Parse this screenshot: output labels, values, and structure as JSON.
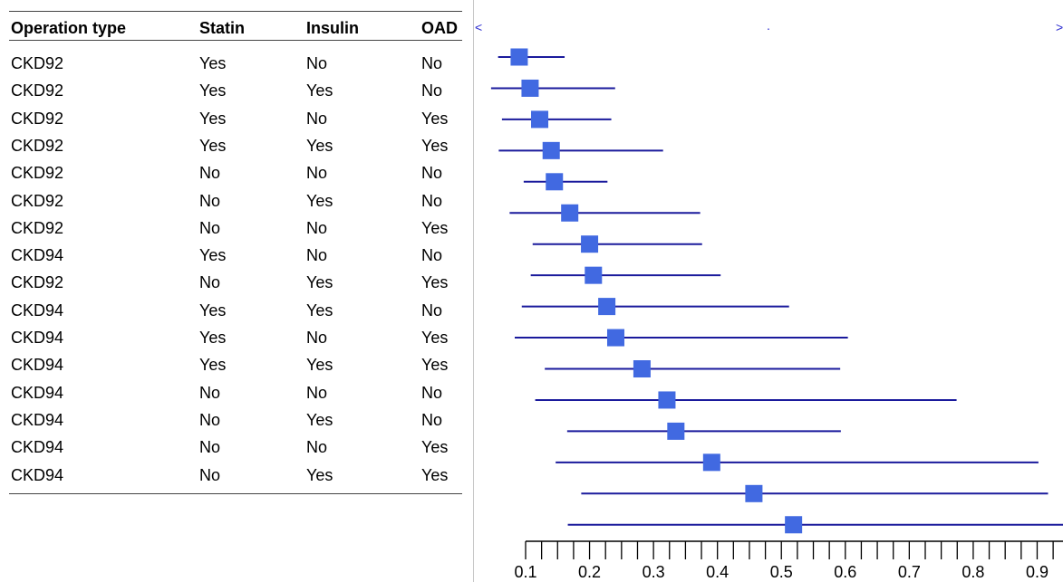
{
  "table": {
    "headers": [
      "Operation type",
      "Statin",
      "Insulin",
      "OAD"
    ],
    "rows": [
      [
        "CKD92",
        "Yes",
        "No",
        "No"
      ],
      [
        "CKD92",
        "Yes",
        "Yes",
        "No"
      ],
      [
        "CKD92",
        "Yes",
        "No",
        "Yes"
      ],
      [
        "CKD92",
        "Yes",
        "Yes",
        "Yes"
      ],
      [
        "CKD92",
        "No",
        "No",
        "No"
      ],
      [
        "CKD92",
        "No",
        "Yes",
        "No"
      ],
      [
        "CKD92",
        "No",
        "No",
        "Yes"
      ],
      [
        "CKD94",
        "Yes",
        "No",
        "No"
      ],
      [
        "CKD92",
        "No",
        "Yes",
        "Yes"
      ],
      [
        "CKD94",
        "Yes",
        "Yes",
        "No"
      ],
      [
        "CKD94",
        "Yes",
        "No",
        "Yes"
      ],
      [
        "CKD94",
        "Yes",
        "Yes",
        "Yes"
      ],
      [
        "CKD94",
        "No",
        "No",
        "No"
      ],
      [
        "CKD94",
        "No",
        "Yes",
        "No"
      ],
      [
        "CKD94",
        "No",
        "No",
        "Yes"
      ],
      [
        "CKD94",
        "No",
        "Yes",
        "Yes"
      ]
    ]
  },
  "nav": {
    "left": "<",
    "center": ".",
    "right": ">"
  },
  "colors": {
    "marker": "#4169e1",
    "ci_line": "#1a1a9c",
    "nav": "#2a2ad0"
  },
  "chart_data": {
    "type": "forest",
    "xlim": [
      0.04,
      1.0
    ],
    "major_ticks": [
      0.1,
      0.2,
      0.3,
      0.4,
      0.5,
      0.6,
      0.7,
      0.8,
      0.9
    ],
    "minor_tick_step": 0.025,
    "points": [
      {
        "est": 0.09,
        "lo": 0.057,
        "hi": 0.161
      },
      {
        "est": 0.107,
        "lo": 0.046,
        "hi": 0.24
      },
      {
        "est": 0.122,
        "lo": 0.063,
        "hi": 0.234
      },
      {
        "est": 0.14,
        "lo": 0.058,
        "hi": 0.315
      },
      {
        "est": 0.145,
        "lo": 0.097,
        "hi": 0.228
      },
      {
        "est": 0.169,
        "lo": 0.075,
        "hi": 0.373
      },
      {
        "est": 0.2,
        "lo": 0.111,
        "hi": 0.376
      },
      {
        "est": 0.206,
        "lo": 0.108,
        "hi": 0.405
      },
      {
        "est": 0.227,
        "lo": 0.094,
        "hi": 0.512
      },
      {
        "est": 0.241,
        "lo": 0.083,
        "hi": 0.604
      },
      {
        "est": 0.282,
        "lo": 0.13,
        "hi": 0.592
      },
      {
        "est": 0.321,
        "lo": 0.115,
        "hi": 0.774
      },
      {
        "est": 0.335,
        "lo": 0.165,
        "hi": 0.593
      },
      {
        "est": 0.391,
        "lo": 0.147,
        "hi": 0.902
      },
      {
        "est": 0.457,
        "lo": 0.187,
        "hi": 0.917
      },
      {
        "est": 0.519,
        "lo": 0.166,
        "hi": 1.0
      }
    ]
  }
}
